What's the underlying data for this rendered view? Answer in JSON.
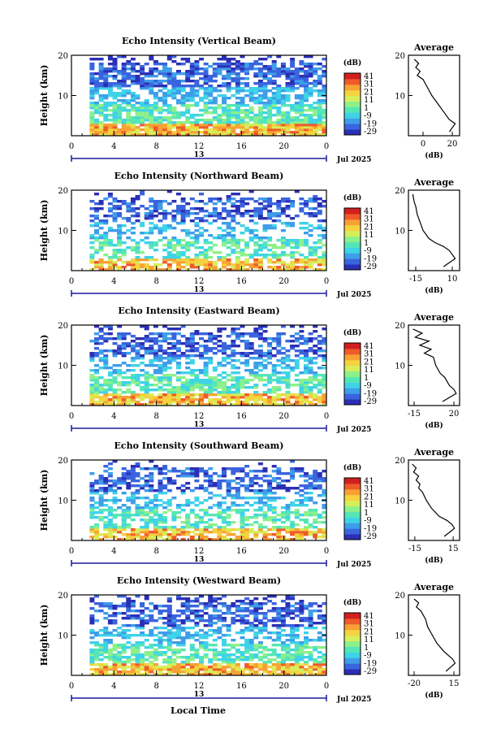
{
  "figure": {
    "xlabel": "Local Time",
    "date_label": "Jul 2025",
    "mid_label": "13",
    "ylabel": "Height (km)",
    "unit_label": "(dB)",
    "average_title": "Average",
    "average_xlabel": "(dB)"
  },
  "colorbar": {
    "ticks": [
      "41",
      "31",
      "21",
      "11",
      "1",
      "-9",
      "-19",
      "-29"
    ],
    "colors": [
      "#2b2fb5",
      "#3a64de",
      "#3e9ee8",
      "#3fd3e8",
      "#55e6b6",
      "#8ef08a",
      "#d6ee5a",
      "#f5d23f",
      "#f7a135",
      "#ef5a2a",
      "#d11f1f"
    ]
  },
  "chart_data": [
    {
      "type": "heatmap",
      "title": "Echo Intensity (Vertical Beam)",
      "x_ticks": [
        "0",
        "4",
        "8",
        "12",
        "16",
        "20",
        "0"
      ],
      "xlim": [
        0,
        24
      ],
      "y_ticks": [
        "20",
        "10"
      ],
      "ylim": [
        0,
        20
      ],
      "profile": {
        "x_ticks": [
          "0",
          "20"
        ],
        "xlim": [
          -10,
          25
        ],
        "points": [
          [
            -6,
            19
          ],
          [
            -3,
            18
          ],
          [
            -5,
            17
          ],
          [
            -2,
            16
          ],
          [
            -4,
            15
          ],
          [
            0,
            14
          ],
          [
            3,
            12
          ],
          [
            6,
            10
          ],
          [
            10,
            8
          ],
          [
            14,
            6
          ],
          [
            18,
            4
          ],
          [
            22,
            3
          ],
          [
            20,
            2
          ],
          [
            18,
            1
          ]
        ]
      }
    },
    {
      "type": "heatmap",
      "title": "Echo Intensity (Northward Beam)",
      "x_ticks": [
        "0",
        "4",
        "8",
        "12",
        "16",
        "20",
        "0"
      ],
      "xlim": [
        0,
        24
      ],
      "y_ticks": [
        "20",
        "10"
      ],
      "ylim": [
        0,
        20
      ],
      "profile": {
        "x_ticks": [
          "-15",
          "10"
        ],
        "xlim": [
          -20,
          15
        ],
        "points": [
          [
            -17,
            19
          ],
          [
            -16,
            17
          ],
          [
            -15,
            16
          ],
          [
            -14,
            14
          ],
          [
            -12,
            12
          ],
          [
            -10,
            10
          ],
          [
            -6,
            8
          ],
          [
            -2,
            7
          ],
          [
            4,
            6
          ],
          [
            8,
            5
          ],
          [
            10,
            4
          ],
          [
            12,
            3
          ],
          [
            8,
            2
          ],
          [
            4,
            1
          ]
        ]
      }
    },
    {
      "type": "heatmap",
      "title": "Echo Intensity (Eastward Beam)",
      "x_ticks": [
        "0",
        "4",
        "8",
        "12",
        "16",
        "20",
        "0"
      ],
      "xlim": [
        0,
        24
      ],
      "y_ticks": [
        "20",
        "10"
      ],
      "ylim": [
        0,
        20
      ],
      "profile": {
        "x_ticks": [
          "-15",
          "20"
        ],
        "xlim": [
          -20,
          25
        ],
        "points": [
          [
            -16,
            19
          ],
          [
            -8,
            18
          ],
          [
            -14,
            17
          ],
          [
            -2,
            16
          ],
          [
            -10,
            15
          ],
          [
            0,
            14
          ],
          [
            -6,
            13
          ],
          [
            2,
            12
          ],
          [
            4,
            10
          ],
          [
            8,
            8
          ],
          [
            12,
            7
          ],
          [
            16,
            5
          ],
          [
            20,
            4
          ],
          [
            22,
            3
          ],
          [
            16,
            2
          ],
          [
            10,
            1
          ]
        ]
      }
    },
    {
      "type": "heatmap",
      "title": "Echo Intensity (Southward Beam)",
      "x_ticks": [
        "0",
        "4",
        "8",
        "12",
        "16",
        "20",
        "0"
      ],
      "xlim": [
        0,
        24
      ],
      "y_ticks": [
        "20",
        "10"
      ],
      "ylim": [
        0,
        20
      ],
      "profile": {
        "x_ticks": [
          "-15",
          "15"
        ],
        "xlim": [
          -20,
          20
        ],
        "points": [
          [
            -17,
            19
          ],
          [
            -14,
            18
          ],
          [
            -16,
            17
          ],
          [
            -12,
            16
          ],
          [
            -14,
            15
          ],
          [
            -11,
            14
          ],
          [
            -12,
            13
          ],
          [
            -9,
            12
          ],
          [
            -6,
            10
          ],
          [
            -2,
            8
          ],
          [
            4,
            6
          ],
          [
            10,
            5
          ],
          [
            14,
            4
          ],
          [
            16,
            3
          ],
          [
            12,
            2
          ],
          [
            8,
            1
          ]
        ]
      }
    },
    {
      "type": "heatmap",
      "title": "Echo Intensity (Westward Beam)",
      "x_ticks": [
        "0",
        "4",
        "8",
        "12",
        "16",
        "20",
        "0"
      ],
      "xlim": [
        0,
        24
      ],
      "y_ticks": [
        "20",
        "10"
      ],
      "ylim": [
        0,
        20
      ],
      "profile": {
        "x_ticks": [
          "-20",
          "15"
        ],
        "xlim": [
          -25,
          20
        ],
        "points": [
          [
            -20,
            19
          ],
          [
            -16,
            18
          ],
          [
            -18,
            17
          ],
          [
            -14,
            16
          ],
          [
            -12,
            15
          ],
          [
            -10,
            14
          ],
          [
            -8,
            12
          ],
          [
            -4,
            10
          ],
          [
            0,
            8
          ],
          [
            6,
            6
          ],
          [
            10,
            5
          ],
          [
            14,
            4
          ],
          [
            16,
            3
          ],
          [
            12,
            2
          ],
          [
            8,
            1
          ]
        ]
      }
    }
  ]
}
